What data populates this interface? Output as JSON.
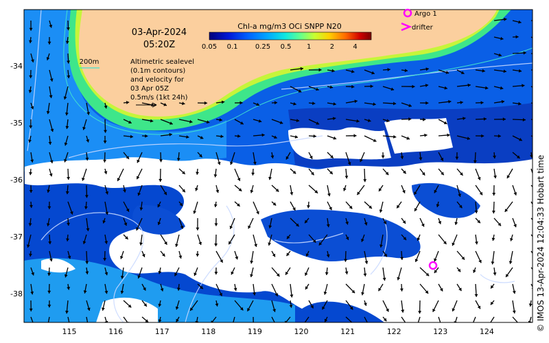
{
  "title": {
    "date": "03-Apr-2024",
    "time": "05:20Z"
  },
  "colorbar": {
    "title": "Chl-a mg/m3 OCi SNPP N20",
    "ticks": [
      "0.05",
      "0.1",
      "0.25",
      "0.5",
      "1",
      "2",
      "4"
    ],
    "colors": [
      "#00007a",
      "#0018d8",
      "#0062ff",
      "#00a8ff",
      "#10e8e0",
      "#60ff90",
      "#c8ff30",
      "#ffd000",
      "#ff6a00",
      "#d00000",
      "#7a0000"
    ]
  },
  "legend": {
    "argo_label": "Argo 1",
    "drifter_label": "drifter",
    "contour_label": "200m",
    "annotation_lines": [
      "Altimetric sealevel",
      "(0.1m contours)",
      "and velocity for",
      "03 Apr 05Z",
      "0.5m/s (1kt 24h)"
    ]
  },
  "axes": {
    "x_ticks": [
      "115",
      "116",
      "117",
      "118",
      "119",
      "120",
      "121",
      "122",
      "123",
      "124"
    ],
    "y_ticks": [
      "-34",
      "-35",
      "-36",
      "-37",
      "-38"
    ]
  },
  "credit": "© IMOS 13-Apr-2024 12:04:33 Hobart time",
  "colors": {
    "land": "#fbcf9e",
    "argo_marker": "#ff00ff",
    "drifter_marker": "#ff00ff",
    "contour_200m": "#40e0d0"
  }
}
